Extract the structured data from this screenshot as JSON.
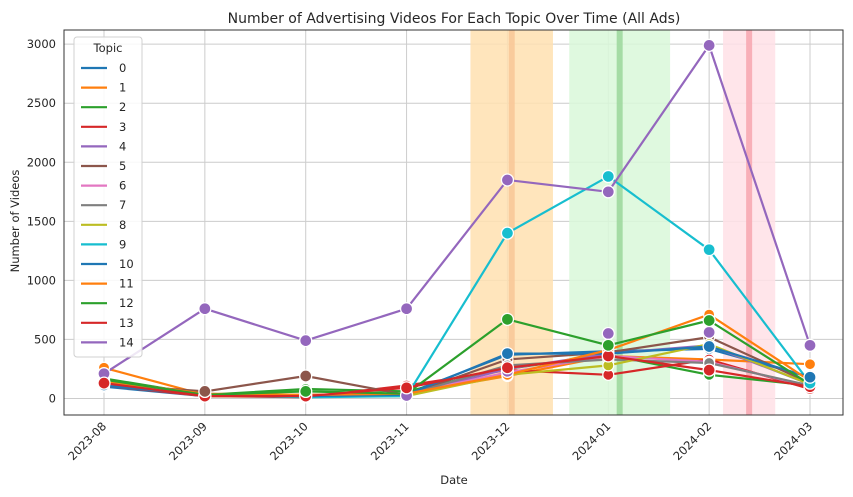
{
  "chart_data": {
    "type": "line",
    "title": "Number of Advertising Videos For Each Topic Over Time (All Ads)",
    "xlabel": "Date",
    "ylabel": "Number of Videos",
    "x": [
      "2023-08",
      "2023-09",
      "2023-10",
      "2023-11",
      "2023-12",
      "2024-01",
      "2024-02",
      "2024-03"
    ],
    "ylim": [
      -140,
      3120
    ],
    "yticks": [
      0,
      500,
      1000,
      1500,
      2000,
      2500,
      3000
    ],
    "grid": true,
    "legend": {
      "title": "Topic",
      "placement": "top-left"
    },
    "shaded_regions": [
      {
        "start": "2023-11-20",
        "end": "2023-12-15",
        "color": "#ffe0b0",
        "center_color": "#f8c898"
      },
      {
        "start": "2023-12-20",
        "end": "2024-01-20",
        "color": "#d9f8d9",
        "center_color": "#9ed89e"
      },
      {
        "start": "2024-02-05",
        "end": "2024-02-20",
        "color": "#ffe0e6",
        "center_color": "#f7a8b2"
      }
    ],
    "series": [
      {
        "name": "0",
        "color": "#1f77b4",
        "values": [
          100,
          20,
          30,
          40,
          370,
          400,
          420,
          180
        ]
      },
      {
        "name": "1",
        "color": "#ff7f0e",
        "values": [
          260,
          30,
          20,
          40,
          190,
          360,
          330,
          290
        ]
      },
      {
        "name": "2",
        "color": "#2ca02c",
        "values": [
          170,
          30,
          80,
          60,
          250,
          370,
          200,
          110
        ]
      },
      {
        "name": "3",
        "color": "#d62728",
        "values": [
          110,
          20,
          10,
          110,
          240,
          200,
          330,
          80
        ]
      },
      {
        "name": "4",
        "color": "#9467bd",
        "values": [
          150,
          40,
          20,
          30,
          250,
          380,
          450,
          120
        ]
      },
      {
        "name": "5",
        "color": "#8c564b",
        "values": [
          120,
          60,
          190,
          30,
          330,
          390,
          520,
          130
        ]
      },
      {
        "name": "6",
        "color": "#e377c2",
        "values": [
          140,
          30,
          20,
          40,
          220,
          360,
          310,
          100
        ]
      },
      {
        "name": "7",
        "color": "#7f7f7f",
        "values": [
          130,
          20,
          30,
          30,
          280,
          330,
          300,
          110
        ]
      },
      {
        "name": "8",
        "color": "#bcbd22",
        "values": [
          150,
          20,
          20,
          20,
          200,
          280,
          460,
          120
        ]
      },
      {
        "name": "9",
        "color": "#17becf",
        "values": [
          120,
          30,
          10,
          20,
          1400,
          1880,
          1260,
          130
        ]
      },
      {
        "name": "10",
        "color": "#1f77b4",
        "values": [
          110,
          30,
          20,
          30,
          380,
          380,
          440,
          180
        ]
      },
      {
        "name": "11",
        "color": "#ff7f0e",
        "values": [
          150,
          40,
          30,
          40,
          200,
          410,
          710,
          150
        ]
      },
      {
        "name": "12",
        "color": "#2ca02c",
        "values": [
          160,
          30,
          60,
          40,
          670,
          450,
          660,
          120
        ]
      },
      {
        "name": "13",
        "color": "#d62728",
        "values": [
          130,
          20,
          20,
          90,
          260,
          360,
          240,
          100
        ]
      },
      {
        "name": "14",
        "color": "#9467bd",
        "values": [
          210,
          760,
          490,
          760,
          1850,
          1750,
          2990,
          450
        ]
      }
    ],
    "overlay_markers": [
      {
        "series": "4",
        "values": [
          200,
          25,
          40,
          25,
          230,
          550,
          560,
          125
        ]
      },
      {
        "series": "14",
        "values": [
          210,
          760,
          490,
          760,
          1850,
          1750,
          2990,
          450
        ]
      },
      {
        "series": "13",
        "values": [
          130,
          20,
          20,
          90,
          260,
          360,
          240,
          100
        ]
      },
      {
        "series": "9",
        "values": [
          null,
          null,
          null,
          null,
          1400,
          1880,
          1260,
          130
        ]
      },
      {
        "series": "0",
        "values": [
          null,
          null,
          null,
          null,
          380,
          null,
          440,
          180
        ]
      },
      {
        "series": "12",
        "values": [
          null,
          null,
          null,
          null,
          670,
          450,
          660,
          null
        ]
      },
      {
        "series": "5",
        "values": [
          null,
          60,
          190,
          null,
          null,
          null,
          null,
          null
        ]
      },
      {
        "series": "2",
        "values": [
          null,
          null,
          60,
          null,
          null,
          null,
          null,
          null
        ]
      }
    ]
  }
}
